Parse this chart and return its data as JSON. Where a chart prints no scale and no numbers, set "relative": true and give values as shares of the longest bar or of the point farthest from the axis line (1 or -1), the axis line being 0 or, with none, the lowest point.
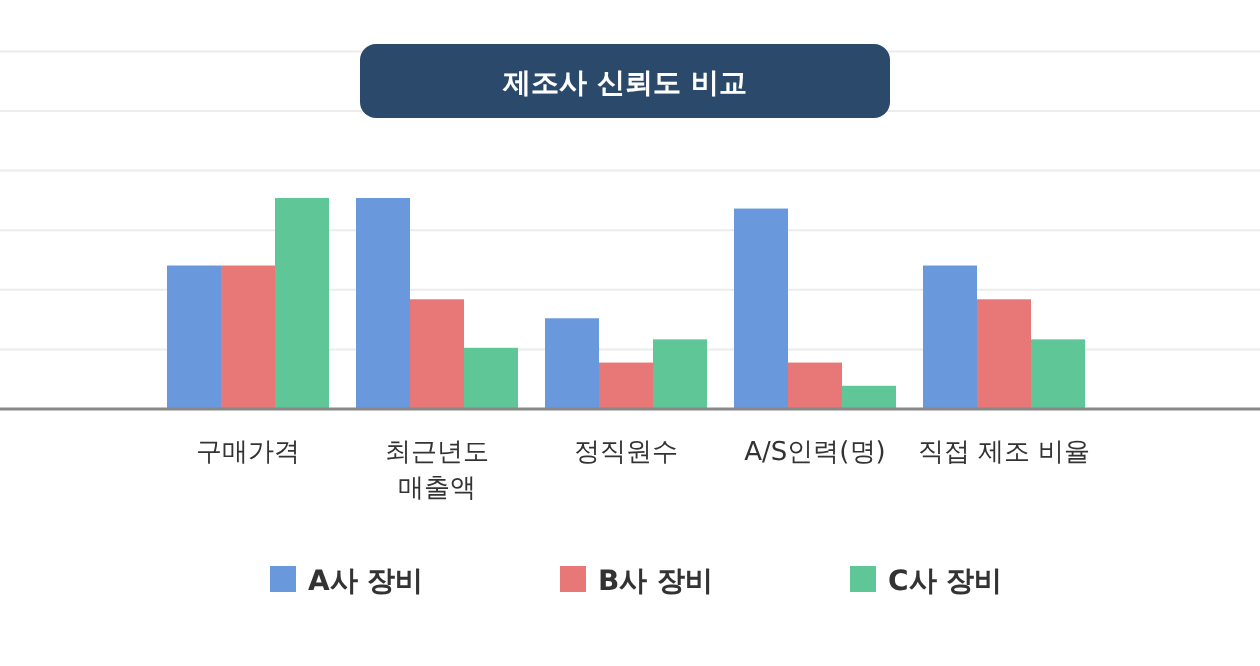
{
  "chart_data": {
    "type": "bar",
    "title": "제조사 신뢰도 비교",
    "relative": true,
    "grid": "y",
    "legend": "bottom",
    "categories": [
      "구매가격",
      "최근년도\n매출액",
      "정직원수",
      "A/S인력(명)",
      "직접 제조 비율"
    ],
    "series": [
      {
        "name": "A사 장비",
        "color": "#6a98dc",
        "values": [
          0.68,
          1.0,
          0.43,
          0.95,
          0.68
        ]
      },
      {
        "name": "B사 장비",
        "color": "#e87777",
        "values": [
          0.68,
          0.52,
          0.22,
          0.22,
          0.52
        ]
      },
      {
        "name": "C사 장비",
        "color": "#5fc698",
        "values": [
          1.0,
          0.29,
          0.33,
          0.11,
          0.33
        ]
      }
    ]
  }
}
